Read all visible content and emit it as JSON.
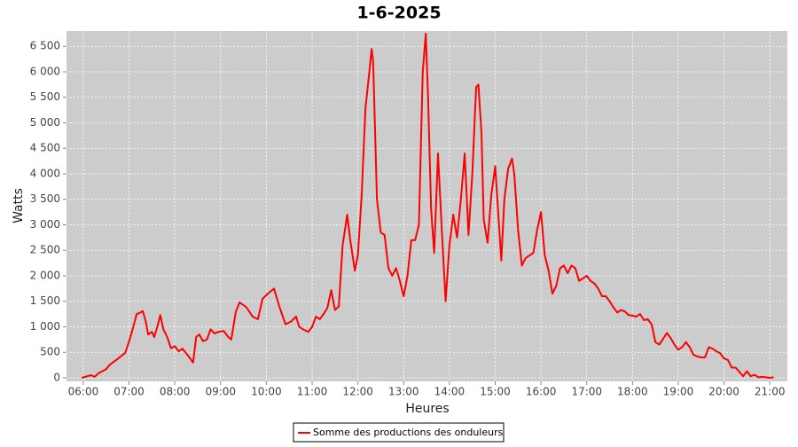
{
  "chart_data": {
    "type": "line",
    "title": "1-6-2025",
    "x_label": "Heures",
    "y_label": "Watts",
    "xlim": [
      "05:38",
      "21:23"
    ],
    "ylim": [
      -70,
      6800
    ],
    "xticks": [
      "06:00",
      "07:00",
      "08:00",
      "09:00",
      "10:00",
      "11:00",
      "12:00",
      "13:00",
      "14:00",
      "15:00",
      "16:00",
      "17:00",
      "18:00",
      "19:00",
      "20:00",
      "21:00"
    ],
    "yticks": [
      0,
      500,
      {
        "value": 1000,
        "label": "1 000"
      },
      {
        "value": 1500,
        "label": "1 500"
      },
      {
        "value": 2000,
        "label": "2 000"
      },
      {
        "value": 2500,
        "label": "2 500"
      },
      {
        "value": 3000,
        "label": "3 000"
      },
      {
        "value": 3500,
        "label": "3 500"
      },
      {
        "value": 4000,
        "label": "4 000"
      },
      {
        "value": 4500,
        "label": "4 500"
      },
      {
        "value": 5000,
        "label": "5 000"
      },
      {
        "value": 5500,
        "label": "5 500"
      },
      {
        "value": 6000,
        "label": "6 000"
      },
      {
        "value": 6500,
        "label": "6 500"
      }
    ],
    "grid": true,
    "legend": "bottom",
    "x": [
      "05:58",
      "06:05",
      "06:10",
      "06:15",
      "06:20",
      "06:30",
      "06:35",
      "06:45",
      "06:55",
      "07:00",
      "07:05",
      "07:10",
      "07:15",
      "07:18",
      "07:22",
      "07:25",
      "07:30",
      "07:33",
      "07:37",
      "07:41",
      "07:45",
      "07:50",
      "07:55",
      "08:00",
      "08:05",
      "08:10",
      "08:15",
      "08:20",
      "08:24",
      "08:28",
      "08:32",
      "08:37",
      "08:42",
      "08:47",
      "08:52",
      "08:57",
      "09:04",
      "09:10",
      "09:14",
      "09:20",
      "09:25",
      "09:34",
      "09:42",
      "09:49",
      "09:55",
      "10:02",
      "10:10",
      "10:17",
      "10:25",
      "10:32",
      "10:39",
      "10:43",
      "10:48",
      "10:55",
      "11:00",
      "11:05",
      "11:10",
      "11:15",
      "11:20",
      "11:25",
      "11:30",
      "11:35",
      "11:40",
      "11:46",
      "11:50",
      "11:56",
      "12:00",
      "12:05",
      "12:10",
      "12:15",
      "12:18",
      "12:20",
      "12:25",
      "12:30",
      "12:35",
      "12:40",
      "12:45",
      "12:50",
      "12:55",
      "13:00",
      "13:05",
      "13:10",
      "13:15",
      "13:20",
      "13:25",
      "13:29",
      "13:32",
      "13:36",
      "13:40",
      "13:45",
      "13:50",
      "13:55",
      "14:00",
      "14:05",
      "14:10",
      "14:15",
      "14:20",
      "14:25",
      "14:30",
      "14:35",
      "14:38",
      "14:42",
      "14:45",
      "14:50",
      "14:55",
      "15:00",
      "15:05",
      "15:08",
      "15:12",
      "15:17",
      "15:22",
      "15:25",
      "15:30",
      "15:35",
      "15:40",
      "15:45",
      "15:50",
      "15:55",
      "16:00",
      "16:05",
      "16:10",
      "16:15",
      "16:20",
      "16:25",
      "16:30",
      "16:35",
      "16:40",
      "16:45",
      "16:50",
      "16:55",
      "17:00",
      "17:05",
      "17:10",
      "17:15",
      "17:20",
      "17:25",
      "17:30",
      "17:35",
      "17:40",
      "17:45",
      "17:50",
      "17:55",
      "18:00",
      "18:05",
      "18:10",
      "18:15",
      "18:20",
      "18:25",
      "18:30",
      "18:35",
      "18:40",
      "18:45",
      "18:50",
      "18:55",
      "19:00",
      "19:05",
      "19:10",
      "19:15",
      "19:20",
      "19:25",
      "19:30",
      "19:35",
      "19:40",
      "19:45",
      "19:50",
      "19:55",
      "20:00",
      "20:05",
      "20:10",
      "20:15",
      "20:20",
      "20:25",
      "20:30",
      "20:35",
      "20:40",
      "20:45",
      "20:50",
      "20:55",
      "21:00",
      "21:05"
    ],
    "series": [
      {
        "name": "Somme des productions des onduleurs",
        "color": "#ff0000",
        "values": [
          0,
          30,
          50,
          20,
          90,
          170,
          260,
          370,
          490,
          710,
          970,
          1250,
          1280,
          1310,
          1100,
          850,
          900,
          800,
          1000,
          1230,
          950,
          800,
          580,
          620,
          520,
          570,
          480,
          380,
          300,
          800,
          850,
          720,
          750,
          950,
          870,
          900,
          920,
          800,
          750,
          1300,
          1480,
          1380,
          1200,
          1150,
          1550,
          1650,
          1750,
          1400,
          1050,
          1100,
          1200,
          1000,
          950,
          900,
          1000,
          1200,
          1150,
          1250,
          1370,
          1720,
          1330,
          1400,
          2600,
          3200,
          2700,
          2100,
          2400,
          3600,
          5300,
          6000,
          6450,
          6200,
          3500,
          2850,
          2800,
          2150,
          2000,
          2150,
          1900,
          1600,
          2000,
          2700,
          2700,
          3000,
          6000,
          6750,
          5500,
          3300,
          2450,
          4400,
          2900,
          1500,
          2600,
          3200,
          2750,
          3500,
          4400,
          2800,
          4000,
          5700,
          5750,
          4800,
          3100,
          2650,
          3600,
          4150,
          3000,
          2300,
          3500,
          4100,
          4300,
          4000,
          2900,
          2200,
          2350,
          2400,
          2450,
          2900,
          3250,
          2400,
          2100,
          1650,
          1800,
          2150,
          2200,
          2050,
          2200,
          2150,
          1900,
          1950,
          2000,
          1900,
          1850,
          1750,
          1600,
          1600,
          1500,
          1380,
          1280,
          1330,
          1300,
          1230,
          1220,
          1200,
          1250,
          1130,
          1150,
          1050,
          700,
          650,
          760,
          880,
          780,
          650,
          550,
          600,
          700,
          600,
          450,
          420,
          400,
          400,
          600,
          570,
          520,
          480,
          380,
          350,
          200,
          200,
          120,
          30,
          130,
          30,
          60,
          10,
          20,
          10,
          0,
          10
        ]
      }
    ]
  }
}
